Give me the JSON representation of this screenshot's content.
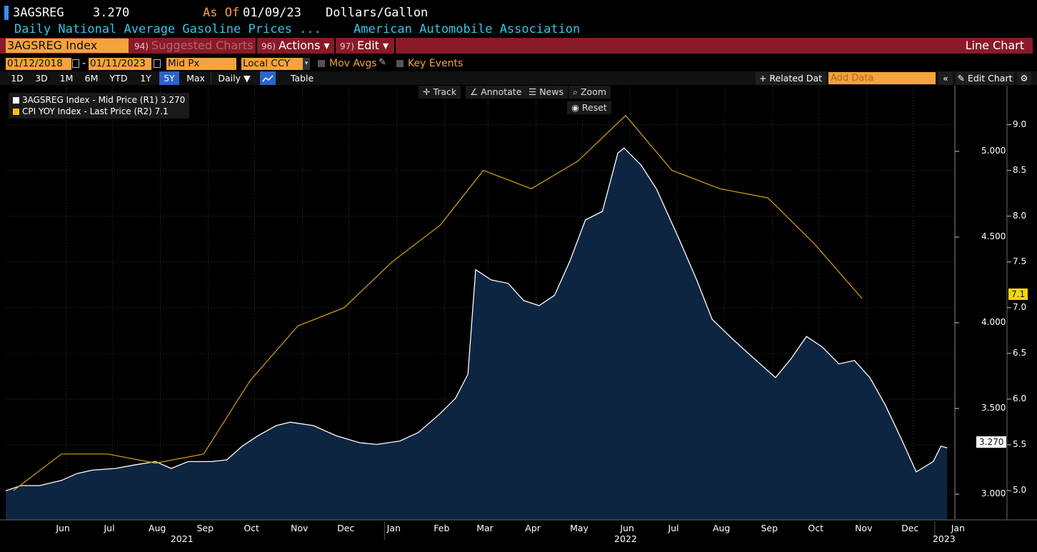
{
  "header": {
    "ticker": "3AGSREG",
    "price": "3.270",
    "as_of_label": "As Of",
    "as_of_date": "01/09/23",
    "units": "Dollars/Gallon",
    "description": "Daily National Average Gasoline Prices ...",
    "source": "American Automobile Association"
  },
  "toolbar": {
    "security": "3AGSREG Index",
    "suggested_num": "94)",
    "suggested_label": "Suggested Charts",
    "actions_num": "96)",
    "actions_label": "Actions ▾",
    "edit_num": "97)",
    "edit_label": "Edit ▾",
    "chart_type": "Line Chart"
  },
  "controls": {
    "start_date": "01/12/2018",
    "dash": "-",
    "end_date": "01/11/2023",
    "price_field": "Mid Px",
    "currency": "Local CCY",
    "mov_avgs": "Mov Avgs",
    "key_events": "Key Events"
  },
  "range_buttons": [
    "1D",
    "3D",
    "1M",
    "6M",
    "YTD",
    "1Y",
    "5Y",
    "Max"
  ],
  "active_range": "5Y",
  "periodicity": "Daily ▼",
  "table_label": "Table",
  "related_data": "+ Related Dat",
  "add_data_placeholder": "Add Data",
  "edit_chart": "Edit Chart",
  "chart_tools": {
    "track": "Track",
    "annotate": "Annotate",
    "news": "News",
    "zoom": "Zoom",
    "reset": "Reset"
  },
  "legend": [
    {
      "label": "3AGSREG Index - Mid Price (R1) 3.270",
      "color": "#ffffff"
    },
    {
      "label": "CPI YOY Index - Last Price (R2) 7.1",
      "color": "#f4c20d"
    }
  ],
  "last_value_tags": {
    "gas": "3.270",
    "cpi": "7.1"
  },
  "colors": {
    "area_fill": "#0e2542",
    "gas_line": "#ffffff",
    "cpi_line": "#d9a21b",
    "grid": "#3a3a3a"
  },
  "chart_data": {
    "type": "line",
    "x_range": [
      "2021-05-10",
      "2023-01-14"
    ],
    "axis_r1": {
      "ticks": [
        "3.000",
        "3.500",
        "4.000",
        "4.500",
        "5.000"
      ],
      "range": [
        2.85,
        5.3
      ]
    },
    "axis_r2": {
      "ticks": [
        "5.0",
        "5.5",
        "6.0",
        "6.5",
        "7.0",
        "7.5",
        "8.0",
        "8.5",
        "9.0"
      ],
      "range": [
        4.68,
        9.27
      ]
    },
    "x_month_labels": [
      {
        "d": "2021-06-01",
        "t": "Jun"
      },
      {
        "d": "2021-07-01",
        "t": "Jul"
      },
      {
        "d": "2021-08-01",
        "t": "Aug"
      },
      {
        "d": "2021-09-01",
        "t": "Sep"
      },
      {
        "d": "2021-10-01",
        "t": "Oct"
      },
      {
        "d": "2021-11-01",
        "t": "Nov"
      },
      {
        "d": "2021-12-01",
        "t": "Dec"
      },
      {
        "d": "2022-01-01",
        "t": "Jan"
      },
      {
        "d": "2022-02-01",
        "t": "Feb"
      },
      {
        "d": "2022-03-01",
        "t": "Mar"
      },
      {
        "d": "2022-04-01",
        "t": "Apr"
      },
      {
        "d": "2022-05-01",
        "t": "May"
      },
      {
        "d": "2022-06-01",
        "t": "Jun"
      },
      {
        "d": "2022-07-01",
        "t": "Jul"
      },
      {
        "d": "2022-08-01",
        "t": "Aug"
      },
      {
        "d": "2022-09-01",
        "t": "Sep"
      },
      {
        "d": "2022-10-01",
        "t": "Oct"
      },
      {
        "d": "2022-11-01",
        "t": "Nov"
      },
      {
        "d": "2022-12-01",
        "t": "Dec"
      },
      {
        "d": "2023-01-01",
        "t": "Jan"
      }
    ],
    "x_year_labels": [
      {
        "d": "2021-09-01",
        "t": "2021"
      },
      {
        "d": "2022-06-15",
        "t": "2022"
      },
      {
        "d": "2023-01-07",
        "t": "2023"
      }
    ],
    "series": [
      {
        "name": "3AGSREG Index - Mid Price (R1)",
        "axis": "R1",
        "type": "area",
        "points": [
          [
            "2021-05-10",
            3.02
          ],
          [
            "2021-05-20",
            3.05
          ],
          [
            "2021-06-01",
            3.05
          ],
          [
            "2021-06-15",
            3.08
          ],
          [
            "2021-06-25",
            3.12
          ],
          [
            "2021-07-05",
            3.14
          ],
          [
            "2021-07-20",
            3.15
          ],
          [
            "2021-08-01",
            3.17
          ],
          [
            "2021-08-15",
            3.19
          ],
          [
            "2021-08-25",
            3.15
          ],
          [
            "2021-09-05",
            3.19
          ],
          [
            "2021-09-20",
            3.19
          ],
          [
            "2021-09-30",
            3.2
          ],
          [
            "2021-10-10",
            3.28
          ],
          [
            "2021-10-20",
            3.34
          ],
          [
            "2021-11-01",
            3.4
          ],
          [
            "2021-11-10",
            3.42
          ],
          [
            "2021-11-25",
            3.4
          ],
          [
            "2021-12-10",
            3.34
          ],
          [
            "2021-12-25",
            3.3
          ],
          [
            "2022-01-05",
            3.29
          ],
          [
            "2022-01-20",
            3.31
          ],
          [
            "2022-02-01",
            3.36
          ],
          [
            "2022-02-15",
            3.47
          ],
          [
            "2022-02-25",
            3.56
          ],
          [
            "2022-03-05",
            3.7
          ],
          [
            "2022-03-10",
            4.31
          ],
          [
            "2022-03-20",
            4.25
          ],
          [
            "2022-03-31",
            4.23
          ],
          [
            "2022-04-10",
            4.13
          ],
          [
            "2022-04-20",
            4.1
          ],
          [
            "2022-04-30",
            4.16
          ],
          [
            "2022-05-10",
            4.36
          ],
          [
            "2022-05-20",
            4.6
          ],
          [
            "2022-05-31",
            4.65
          ],
          [
            "2022-06-10",
            4.99
          ],
          [
            "2022-06-14",
            5.02
          ],
          [
            "2022-06-25",
            4.92
          ],
          [
            "2022-07-05",
            4.78
          ],
          [
            "2022-07-20",
            4.48
          ],
          [
            "2022-07-31",
            4.25
          ],
          [
            "2022-08-10",
            4.02
          ],
          [
            "2022-08-25",
            3.89
          ],
          [
            "2022-09-05",
            3.8
          ],
          [
            "2022-09-20",
            3.68
          ],
          [
            "2022-09-30",
            3.79
          ],
          [
            "2022-10-10",
            3.92
          ],
          [
            "2022-10-20",
            3.86
          ],
          [
            "2022-10-31",
            3.76
          ],
          [
            "2022-11-10",
            3.78
          ],
          [
            "2022-11-20",
            3.68
          ],
          [
            "2022-11-30",
            3.52
          ],
          [
            "2022-12-10",
            3.33
          ],
          [
            "2022-12-20",
            3.13
          ],
          [
            "2022-12-31",
            3.19
          ],
          [
            "2023-01-05",
            3.28
          ],
          [
            "2023-01-09",
            3.27
          ]
        ]
      },
      {
        "name": "CPI YOY Index - Last Price (R2)",
        "axis": "R2",
        "type": "line",
        "points": [
          [
            "2021-05-15",
            5.0
          ],
          [
            "2021-06-15",
            5.4
          ],
          [
            "2021-07-15",
            5.4
          ],
          [
            "2021-08-15",
            5.3
          ],
          [
            "2021-09-15",
            5.4
          ],
          [
            "2021-10-15",
            6.2
          ],
          [
            "2021-11-15",
            6.8
          ],
          [
            "2021-12-15",
            7.0
          ],
          [
            "2022-01-15",
            7.5
          ],
          [
            "2022-02-15",
            7.9
          ],
          [
            "2022-03-15",
            8.5
          ],
          [
            "2022-04-15",
            8.3
          ],
          [
            "2022-05-15",
            8.6
          ],
          [
            "2022-06-15",
            9.1
          ],
          [
            "2022-07-15",
            8.5
          ],
          [
            "2022-08-15",
            8.3
          ],
          [
            "2022-09-15",
            8.2
          ],
          [
            "2022-10-15",
            7.7
          ],
          [
            "2022-11-15",
            7.1
          ]
        ]
      }
    ]
  }
}
